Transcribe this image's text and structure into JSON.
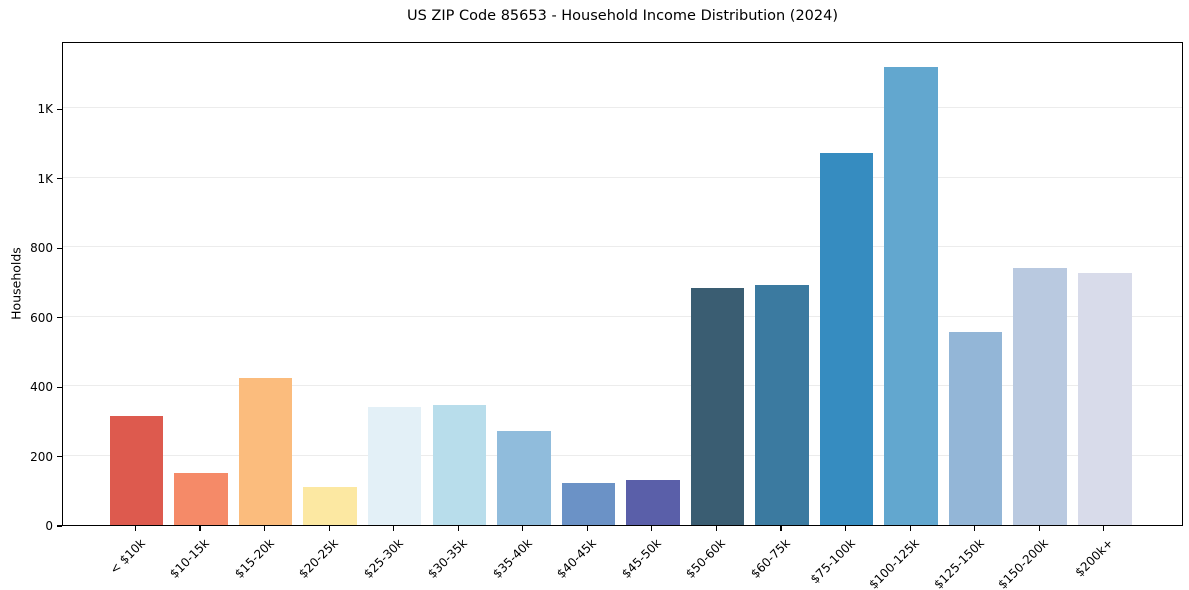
{
  "chart_data": {
    "type": "bar",
    "title": "US ZIP Code 85653 - Household Income Distribution (2024)",
    "xlabel": "",
    "ylabel": "Households",
    "categories": [
      "< $10k",
      "$10-15k",
      "$15-20k",
      "$20-25k",
      "$25-30k",
      "$30-35k",
      "$35-40k",
      "$40-45k",
      "$45-50k",
      "$50-60k",
      "$60-75k",
      "$75-100k",
      "$100-125k",
      "$125-150k",
      "$150-200k",
      "$200k+"
    ],
    "values": [
      315,
      150,
      424,
      110,
      340,
      346,
      270,
      121,
      130,
      684,
      690,
      1072,
      1318,
      556,
      740,
      726
    ],
    "bar_colors": [
      "#dd5a4e",
      "#f58a68",
      "#fbbc7d",
      "#fce8a2",
      "#e3f0f7",
      "#b8ddeb",
      "#90bcdc",
      "#6b92c6",
      "#5a5fa9",
      "#3a5d72",
      "#3b7aa0",
      "#368cc0",
      "#62a7cf",
      "#93b6d7",
      "#b9c9e0",
      "#d8dbea"
    ],
    "ylim": [
      0,
      1394
    ],
    "yticks": {
      "values": [
        0,
        200,
        400,
        600,
        800,
        1000,
        1200
      ],
      "labels": [
        "0",
        "200",
        "400",
        "600",
        "800",
        "1K",
        "1K"
      ]
    },
    "grid": "horizontal-only",
    "legend": "none",
    "background_color": "#ffffff",
    "axis_color": "#000000",
    "gridline_color": "#ececec"
  }
}
